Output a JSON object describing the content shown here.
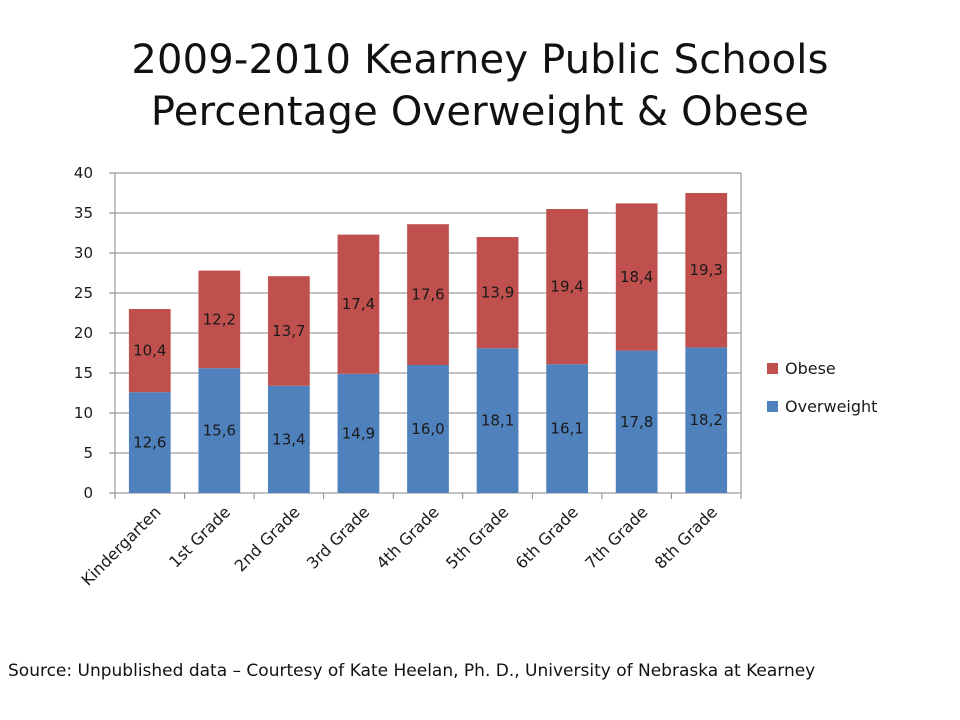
{
  "title_line1": "2009-2010 Kearney Public Schools",
  "title_line2": "Percentage Overweight & Obese",
  "source": "Source: Unpublished data – Courtesy of Kate Heelan, Ph. D., University of Nebraska at Kearney",
  "colors": {
    "overweight": "#4f81bd",
    "obese": "#c0504d",
    "grid": "#868686"
  },
  "chart_data": {
    "type": "bar",
    "stacked": true,
    "categories": [
      "Kindergarten",
      "1st Grade",
      "2nd Grade",
      "3rd Grade",
      "4th Grade",
      "5th Grade",
      "6th Grade",
      "7th Grade",
      "8th Grade"
    ],
    "series": [
      {
        "name": "Overweight",
        "values": [
          12.6,
          15.6,
          13.4,
          14.9,
          16.0,
          18.1,
          16.1,
          17.8,
          18.2
        ],
        "labels": [
          "12,6",
          "15,6",
          "13,4",
          "14,9",
          "16,0",
          "18,1",
          "16,1",
          "17,8",
          "18,2"
        ]
      },
      {
        "name": "Obese",
        "values": [
          10.4,
          12.2,
          13.7,
          17.4,
          17.6,
          13.9,
          19.4,
          18.4,
          19.3
        ],
        "labels": [
          "10,4",
          "12,2",
          "13,7",
          "17,4",
          "17,6",
          "13,9",
          "19,4",
          "18,4",
          "19,3"
        ]
      }
    ],
    "ylim": [
      0,
      40
    ],
    "yticks": [
      0,
      5,
      10,
      15,
      20,
      25,
      30,
      35,
      40
    ],
    "grid": true,
    "legend": "right",
    "legend_order": [
      "Obese",
      "Overweight"
    ]
  }
}
